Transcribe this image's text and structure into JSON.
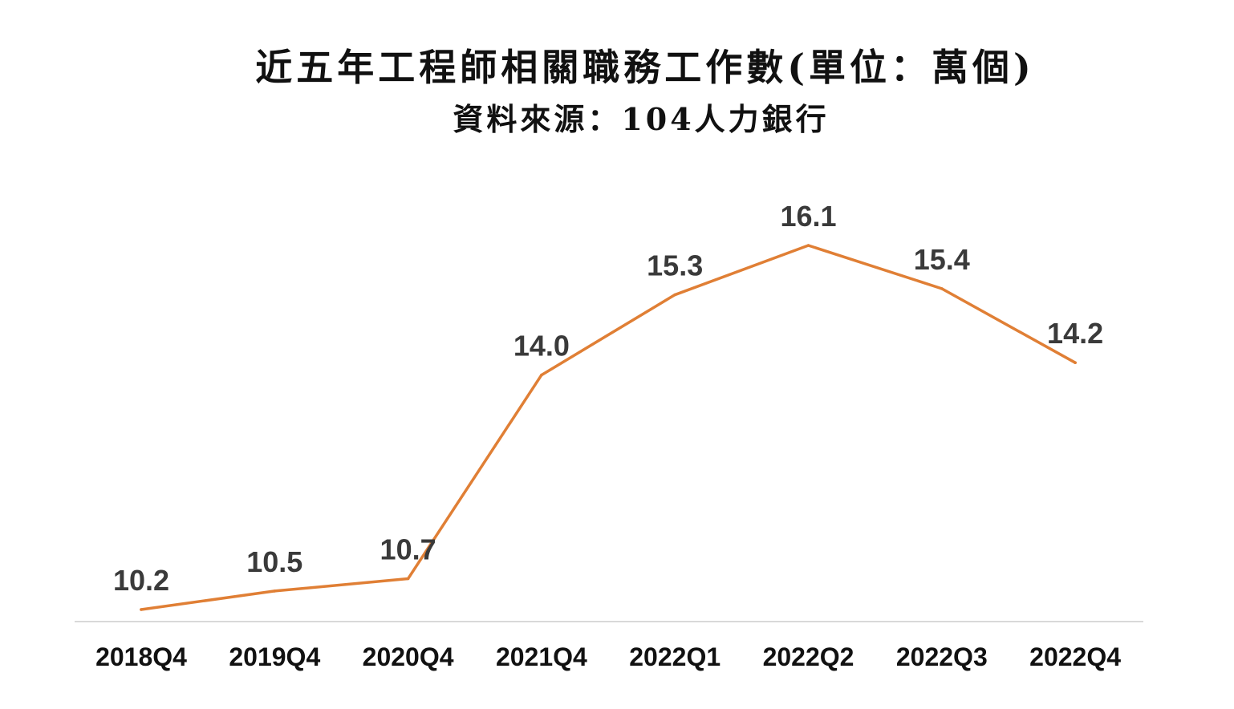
{
  "chart_data": {
    "type": "line",
    "title": "近五年工程師相關職務工作數(單位：萬個)",
    "subtitle": "資料來源：104人力銀行",
    "categories": [
      "2018Q4",
      "2019Q4",
      "2020Q4",
      "2021Q4",
      "2022Q1",
      "2022Q2",
      "2022Q3",
      "2022Q4"
    ],
    "series": [
      {
        "values": [
          10.2,
          10.5,
          10.7,
          14.0,
          15.3,
          16.1,
          15.4,
          14.2
        ],
        "labels": [
          "10.2",
          "10.5",
          "10.7",
          "14.0",
          "15.3",
          "16.1",
          "15.4",
          "14.2"
        ],
        "color": "#E07F35"
      }
    ],
    "ylim": [
      9.8,
      16.8
    ],
    "grid": false,
    "legend": "none",
    "baseline_color": "#D9D9D9"
  }
}
